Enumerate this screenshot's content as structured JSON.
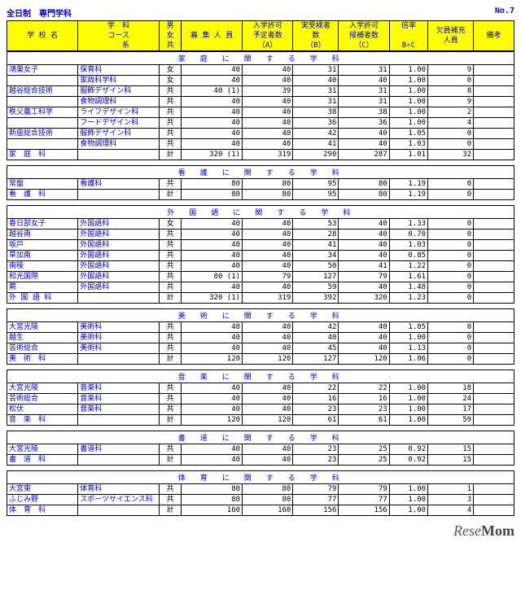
{
  "page": {
    "title_left": "全日制　専門学科",
    "title_right": "No.7",
    "footer_brand": "ReseMom"
  },
  "columns": {
    "c1": "学 校 名",
    "c2": "学　科\nコース\n　　系",
    "c3": "男\n女\n共",
    "c4": "募 集 人 員",
    "c5": "入学許可\n予定者数\n（A）",
    "c6": "実受検者\n数\n（B）",
    "c7": "入学許可\n候補者数\n（C）",
    "c8": "倍率\n\nB÷C",
    "c9": "欠員補充\n人員",
    "c10": "備考"
  },
  "widths": [
    "70",
    "80",
    "22",
    "60",
    "50",
    "45",
    "50",
    "38",
    "45",
    "40"
  ],
  "sections": [
    {
      "title": "家　庭　に　関　す　る　学　科",
      "rows": [
        [
          "鴻巣女子",
          "保育科",
          "女",
          "40",
          "",
          "40",
          "31",
          "31",
          "1.00",
          "9",
          ""
        ],
        [
          "",
          "家政科学科",
          "女",
          "40",
          "",
          "40",
          "40",
          "40",
          "1.00",
          "0",
          ""
        ],
        [
          "越谷総合技術",
          "服飾デザイン科",
          "共",
          "40",
          "(1)",
          "39",
          "31",
          "31",
          "1.00",
          "8",
          ""
        ],
        [
          "",
          "食物調理科",
          "共",
          "40",
          "",
          "40",
          "31",
          "31",
          "1.00",
          "9",
          ""
        ],
        [
          "秩父農工科学",
          "ライフデザイン科",
          "共",
          "40",
          "",
          "40",
          "38",
          "38",
          "1.00",
          "2",
          ""
        ],
        [
          "",
          "フードデザイン科",
          "共",
          "40",
          "",
          "40",
          "36",
          "36",
          "1.00",
          "4",
          ""
        ],
        [
          "新座総合技術",
          "服飾デザイン科",
          "共",
          "40",
          "",
          "40",
          "42",
          "40",
          "1.05",
          "0",
          ""
        ],
        [
          "",
          "食物調理科",
          "共",
          "40",
          "",
          "40",
          "41",
          "40",
          "1.03",
          "0",
          ""
        ]
      ],
      "total": [
        "家　庭　科",
        "",
        "計",
        "320",
        "(1)",
        "319",
        "290",
        "287",
        "1.01",
        "32",
        ""
      ]
    },
    {
      "title": "看　護　に　関　す　る　学　科",
      "rows": [
        [
          "常盤",
          "看護科",
          "共",
          "80",
          "",
          "80",
          "95",
          "80",
          "1.19",
          "0",
          ""
        ]
      ],
      "total": [
        "看　護　科",
        "",
        "計",
        "80",
        "",
        "80",
        "95",
        "80",
        "1.19",
        "0",
        ""
      ]
    },
    {
      "title": "外　国　語　に　関　す　る　学　科",
      "rows": [
        [
          "春日部女子",
          "外国語科",
          "女",
          "40",
          "",
          "40",
          "53",
          "40",
          "1.33",
          "0",
          ""
        ],
        [
          "越谷南",
          "外国語科",
          "共",
          "40",
          "",
          "40",
          "28",
          "40",
          "0.70",
          "0",
          ""
        ],
        [
          "坂戸",
          "外国語科",
          "共",
          "40",
          "",
          "40",
          "41",
          "40",
          "1.03",
          "0",
          ""
        ],
        [
          "草加南",
          "外国語科",
          "共",
          "40",
          "",
          "40",
          "34",
          "40",
          "0.85",
          "0",
          ""
        ],
        [
          "南稜",
          "外国語科",
          "共",
          "40",
          "",
          "40",
          "50",
          "41",
          "1.22",
          "0",
          ""
        ],
        [
          "和光国際",
          "外国語科",
          "共",
          "80",
          "(1)",
          "79",
          "127",
          "79",
          "1.61",
          "0",
          ""
        ],
        [
          "蕨",
          "外国語科",
          "共",
          "40",
          "",
          "40",
          "59",
          "40",
          "1.48",
          "0",
          ""
        ]
      ],
      "total": [
        "外 国 語 科",
        "",
        "計",
        "320",
        "(1)",
        "319",
        "392",
        "320",
        "1.23",
        "0",
        ""
      ]
    },
    {
      "title": "美　術　に　関　す　る　学　科",
      "rows": [
        [
          "大宮光陵",
          "美術科",
          "共",
          "40",
          "",
          "40",
          "42",
          "40",
          "1.05",
          "0",
          ""
        ],
        [
          "越生",
          "美術科",
          "共",
          "40",
          "",
          "40",
          "40",
          "40",
          "1.00",
          "0",
          ""
        ],
        [
          "芸術総合",
          "美術科",
          "共",
          "40",
          "",
          "40",
          "45",
          "40",
          "1.13",
          "0",
          ""
        ]
      ],
      "total": [
        "美　術　科",
        "",
        "計",
        "120",
        "",
        "120",
        "127",
        "120",
        "1.06",
        "0",
        ""
      ]
    },
    {
      "title": "音　楽　に　関　す　る　学　科",
      "rows": [
        [
          "大宮光陵",
          "音楽科",
          "共",
          "40",
          "",
          "40",
          "22",
          "22",
          "1.00",
          "18",
          ""
        ],
        [
          "芸術総合",
          "音楽科",
          "共",
          "40",
          "",
          "40",
          "16",
          "16",
          "1.00",
          "24",
          ""
        ],
        [
          "松伏",
          "音楽科",
          "共",
          "40",
          "",
          "40",
          "23",
          "23",
          "1.00",
          "17",
          ""
        ]
      ],
      "total": [
        "音　楽　科",
        "",
        "計",
        "120",
        "",
        "120",
        "61",
        "61",
        "1.00",
        "59",
        ""
      ]
    },
    {
      "title": "書　道　に　関　す　る　学　科",
      "rows": [
        [
          "大宮光陵",
          "書道科",
          "共",
          "40",
          "",
          "40",
          "23",
          "25",
          "0.92",
          "15",
          ""
        ]
      ],
      "total": [
        "書　道　科",
        "",
        "計",
        "40",
        "",
        "40",
        "23",
        "25",
        "0.92",
        "15",
        ""
      ]
    },
    {
      "title": "体　育　に　関　す　る　学　科",
      "rows": [
        [
          "大宮東",
          "体育科",
          "共",
          "80",
          "",
          "80",
          "79",
          "79",
          "1.00",
          "1",
          ""
        ],
        [
          "ふじみ野",
          "スポーツサイエンス科",
          "共",
          "80",
          "",
          "80",
          "77",
          "77",
          "1.00",
          "3",
          ""
        ]
      ],
      "total": [
        "体　育　科",
        "",
        "計",
        "160",
        "",
        "160",
        "156",
        "156",
        "1.00",
        "4",
        ""
      ]
    }
  ]
}
